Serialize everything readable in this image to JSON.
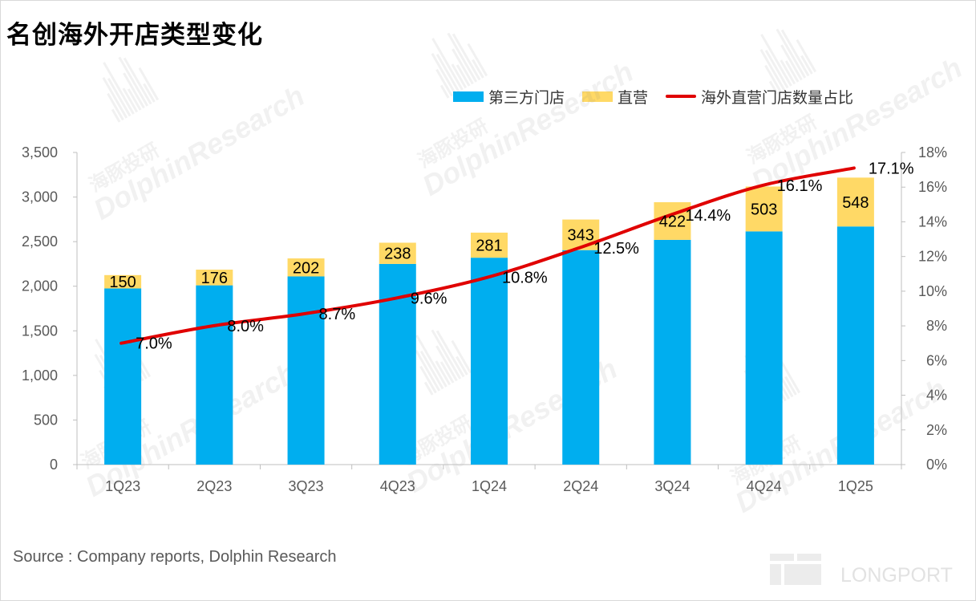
{
  "title": "名创海外开店类型变化",
  "source": "Source : Company reports, Dolphin Research",
  "watermark": {
    "cn": "海豚投研",
    "en": "DolphinResearch"
  },
  "logo_text": "LONGPORT",
  "colors": {
    "third_party": "#00AEEF",
    "direct": "#FFD966",
    "ratio_line": "#E00000",
    "axis_text": "#595959",
    "axis_line": "#BFBFBF"
  },
  "chart_data": {
    "type": "bar",
    "stacked": true,
    "categories": [
      "1Q23",
      "2Q23",
      "3Q23",
      "4Q23",
      "1Q24",
      "2Q24",
      "3Q24",
      "4Q24",
      "1Q25"
    ],
    "series": [
      {
        "name": "第三方门店",
        "values": [
          1975,
          2010,
          2110,
          2250,
          2320,
          2405,
          2520,
          2615,
          2670
        ]
      },
      {
        "name": "直营",
        "values": [
          150,
          176,
          202,
          238,
          281,
          343,
          422,
          503,
          548
        ]
      }
    ],
    "line_series": {
      "name": "海外直营门店数量占比",
      "values": [
        7.0,
        8.0,
        8.7,
        9.6,
        10.8,
        12.5,
        14.4,
        16.1,
        17.1
      ],
      "labels": [
        "7.0%",
        "8.0%",
        "8.7%",
        "9.6%",
        "10.8%",
        "12.5%",
        "14.4%",
        "16.1%",
        "17.1%"
      ]
    },
    "y_left": {
      "ylim": [
        0,
        3500
      ],
      "ticks": [
        "0",
        "500",
        "1,000",
        "1,500",
        "2,000",
        "2,500",
        "3,000",
        "3,500"
      ]
    },
    "y_right": {
      "ylim": [
        0,
        18
      ],
      "ticks": [
        "0%",
        "2%",
        "4%",
        "6%",
        "8%",
        "10%",
        "12%",
        "14%",
        "16%",
        "18%"
      ]
    },
    "legend_position": "top-right",
    "grid": false
  }
}
